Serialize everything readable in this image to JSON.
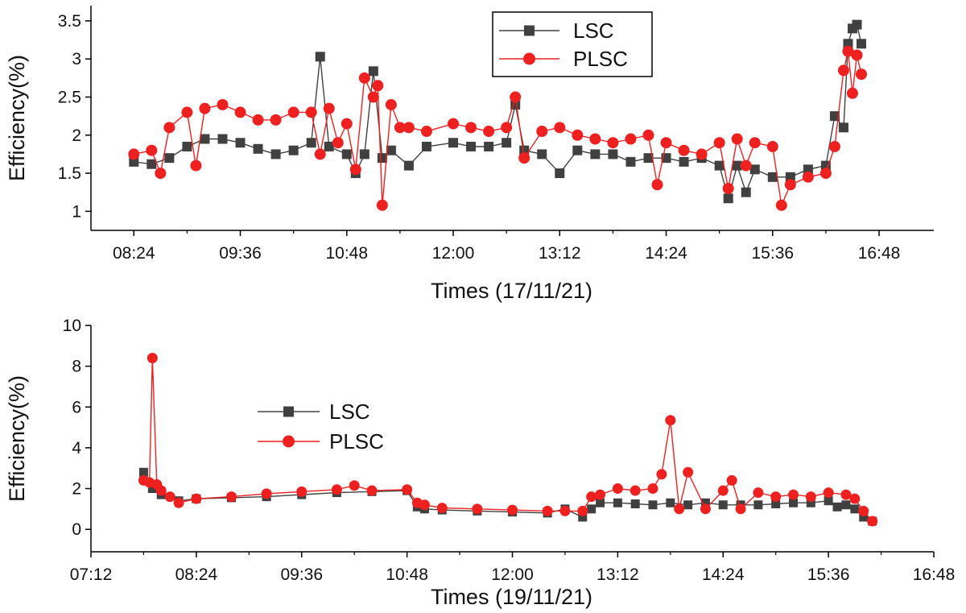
{
  "colors": {
    "lsc": "#404040",
    "plsc": "#ee2020",
    "axis": "#000000",
    "background": "#ffffff"
  },
  "chart_data": [
    {
      "type": "line",
      "xlabel": "Times (17/11/21)",
      "ylabel": "Efficiency(%)",
      "xlim": [
        "07:55",
        "17:25"
      ],
      "ylim": [
        0.75,
        3.7
      ],
      "x_ticks": [
        "08:24",
        "09:36",
        "10:48",
        "12:00",
        "13:12",
        "14:24",
        "15:36",
        "16:48"
      ],
      "y_ticks": [
        "1",
        "1.5",
        "2",
        "2.5",
        "3",
        "3.5"
      ],
      "grid": false,
      "legend": {
        "position": "top-center",
        "framed": true,
        "entries": [
          "LSC",
          "PLSC"
        ]
      },
      "series": [
        {
          "name": "LSC",
          "marker": "square",
          "x": [
            "08:24",
            "08:36",
            "08:48",
            "09:00",
            "09:12",
            "09:24",
            "09:36",
            "09:48",
            "10:00",
            "10:12",
            "10:24",
            "10:30",
            "10:36",
            "10:48",
            "10:54",
            "11:00",
            "11:06",
            "11:12",
            "11:18",
            "11:30",
            "11:42",
            "12:00",
            "12:12",
            "12:24",
            "12:36",
            "12:42",
            "12:48",
            "13:00",
            "13:12",
            "13:24",
            "13:36",
            "13:48",
            "14:00",
            "14:12",
            "14:24",
            "14:36",
            "14:48",
            "15:00",
            "15:06",
            "15:12",
            "15:18",
            "15:24",
            "15:36",
            "15:48",
            "16:00",
            "16:12",
            "16:18",
            "16:24",
            "16:27",
            "16:30",
            "16:33",
            "16:36"
          ],
          "y": [
            1.65,
            1.62,
            1.7,
            1.85,
            1.95,
            1.95,
            1.9,
            1.82,
            1.75,
            1.8,
            1.9,
            3.03,
            1.85,
            1.75,
            1.5,
            1.75,
            2.84,
            1.7,
            1.8,
            1.6,
            1.85,
            1.9,
            1.85,
            1.85,
            1.9,
            2.4,
            1.8,
            1.75,
            1.5,
            1.8,
            1.75,
            1.75,
            1.65,
            1.7,
            1.7,
            1.65,
            1.7,
            1.6,
            1.17,
            1.6,
            1.25,
            1.55,
            1.45,
            1.45,
            1.55,
            1.6,
            2.25,
            2.1,
            3.2,
            3.4,
            3.45,
            3.2
          ]
        },
        {
          "name": "PLSC",
          "marker": "circle",
          "x": [
            "08:24",
            "08:36",
            "08:42",
            "08:48",
            "09:00",
            "09:06",
            "09:12",
            "09:24",
            "09:36",
            "09:48",
            "10:00",
            "10:12",
            "10:24",
            "10:30",
            "10:36",
            "10:42",
            "10:48",
            "10:54",
            "11:00",
            "11:06",
            "11:09",
            "11:12",
            "11:18",
            "11:24",
            "11:30",
            "11:42",
            "12:00",
            "12:12",
            "12:24",
            "12:36",
            "12:42",
            "12:48",
            "13:00",
            "13:12",
            "13:24",
            "13:36",
            "13:48",
            "14:00",
            "14:12",
            "14:18",
            "14:24",
            "14:36",
            "14:48",
            "15:00",
            "15:06",
            "15:12",
            "15:18",
            "15:24",
            "15:36",
            "15:42",
            "15:48",
            "16:00",
            "16:12",
            "16:18",
            "16:24",
            "16:27",
            "16:30",
            "16:33",
            "16:36"
          ],
          "y": [
            1.75,
            1.8,
            1.5,
            2.1,
            2.3,
            1.6,
            2.35,
            2.4,
            2.3,
            2.2,
            2.2,
            2.3,
            2.3,
            1.75,
            2.35,
            1.9,
            2.15,
            1.55,
            2.75,
            2.5,
            2.65,
            1.08,
            2.4,
            2.1,
            2.1,
            2.05,
            2.15,
            2.1,
            2.05,
            2.1,
            2.5,
            1.7,
            2.05,
            2.1,
            2.0,
            1.95,
            1.9,
            1.95,
            2.0,
            1.35,
            1.9,
            1.8,
            1.75,
            1.9,
            1.3,
            1.95,
            1.6,
            1.9,
            1.85,
            1.08,
            1.35,
            1.45,
            1.5,
            1.85,
            2.85,
            3.1,
            2.55,
            3.05,
            2.8
          ]
        }
      ]
    },
    {
      "type": "line",
      "xlabel": "Times (19/11/21)",
      "ylabel": "Efficiency(%)",
      "xlim": [
        "07:12",
        "16:48"
      ],
      "ylim": [
        -1.1,
        10
      ],
      "x_ticks": [
        "07:12",
        "08:24",
        "09:36",
        "10:48",
        "12:00",
        "13:12",
        "14:24",
        "15:36",
        "16:48"
      ],
      "y_ticks": [
        "0",
        "2",
        "4",
        "6",
        "8",
        "10"
      ],
      "grid": false,
      "legend": {
        "position": "middle-left",
        "framed": false,
        "entries": [
          "LSC",
          "PLSC"
        ]
      },
      "series": [
        {
          "name": "LSC",
          "marker": "square",
          "x": [
            "07:48",
            "07:54",
            "08:00",
            "08:12",
            "08:24",
            "08:48",
            "09:12",
            "09:36",
            "10:00",
            "10:24",
            "10:48",
            "10:55",
            "11:00",
            "11:12",
            "11:36",
            "12:00",
            "12:24",
            "12:36",
            "12:48",
            "12:54",
            "13:00",
            "13:12",
            "13:24",
            "13:36",
            "13:48",
            "14:00",
            "14:12",
            "14:24",
            "14:36",
            "14:48",
            "15:00",
            "15:12",
            "15:24",
            "15:36",
            "15:42",
            "15:48",
            "15:54",
            "16:00",
            "16:06"
          ],
          "y": [
            2.8,
            2.0,
            1.7,
            1.4,
            1.5,
            1.55,
            1.6,
            1.7,
            1.8,
            1.85,
            1.9,
            1.1,
            1.0,
            0.95,
            0.9,
            0.85,
            0.8,
            1.0,
            0.6,
            1.0,
            1.3,
            1.3,
            1.25,
            1.2,
            1.3,
            1.2,
            1.3,
            1.2,
            1.2,
            1.2,
            1.25,
            1.3,
            1.3,
            1.4,
            1.1,
            1.2,
            1.0,
            0.6,
            0.4
          ]
        },
        {
          "name": "PLSC",
          "marker": "circle",
          "x": [
            "07:48",
            "07:52",
            "07:54",
            "07:57",
            "08:00",
            "08:06",
            "08:12",
            "08:24",
            "08:48",
            "09:12",
            "09:36",
            "10:00",
            "10:12",
            "10:24",
            "10:48",
            "10:55",
            "11:00",
            "11:12",
            "11:36",
            "12:00",
            "12:24",
            "12:36",
            "12:48",
            "12:54",
            "13:00",
            "13:12",
            "13:24",
            "13:36",
            "13:42",
            "13:48",
            "13:54",
            "14:00",
            "14:12",
            "14:24",
            "14:30",
            "14:36",
            "14:48",
            "15:00",
            "15:12",
            "15:24",
            "15:36",
            "15:48",
            "15:54",
            "16:00",
            "16:06"
          ],
          "y": [
            2.4,
            2.3,
            8.4,
            2.2,
            1.9,
            1.6,
            1.3,
            1.5,
            1.6,
            1.75,
            1.85,
            1.95,
            2.15,
            1.9,
            1.95,
            1.3,
            1.2,
            1.05,
            1.0,
            0.95,
            0.9,
            0.9,
            0.9,
            1.6,
            1.7,
            2.0,
            1.9,
            2.0,
            2.7,
            5.35,
            1.0,
            2.8,
            1.0,
            1.9,
            2.4,
            1.0,
            1.8,
            1.6,
            1.7,
            1.6,
            1.8,
            1.7,
            1.5,
            0.9,
            0.4
          ]
        }
      ]
    }
  ]
}
